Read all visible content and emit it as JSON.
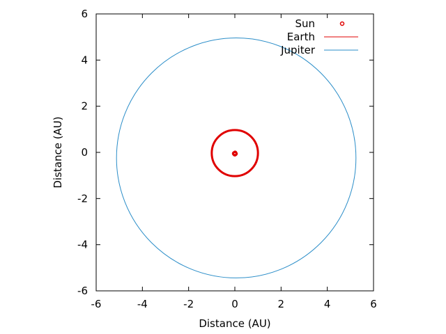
{
  "chart_data": {
    "type": "scatter",
    "title": "",
    "xlabel": "Distance (AU)",
    "ylabel": "Distance (AU)",
    "xlim": [
      -6,
      6
    ],
    "ylim": [
      -6,
      6
    ],
    "xticks": [
      "-6",
      "-4",
      "-2",
      "0",
      "2",
      "4",
      "6"
    ],
    "yticks": [
      "6",
      "4",
      "2",
      "0",
      "-2",
      "-4",
      "-6"
    ],
    "xtick_values": [
      -6,
      -4,
      -2,
      0,
      2,
      4,
      6
    ],
    "ytick_values": [
      6,
      4,
      2,
      0,
      -2,
      -4,
      -6
    ],
    "grid": false,
    "legend_position": "top-right",
    "series": [
      {
        "name": "Sun",
        "style": "points",
        "color": "#e00000",
        "points": [
          [
            0.0,
            -0.05
          ],
          [
            0.01,
            -0.04
          ],
          [
            -0.01,
            -0.06
          ],
          [
            0.02,
            -0.05
          ],
          [
            -0.02,
            -0.04
          ],
          [
            0.0,
            -0.08
          ],
          [
            0.01,
            -0.02
          ],
          [
            -0.01,
            -0.07
          ],
          [
            0.03,
            -0.06
          ],
          [
            -0.03,
            -0.05
          ]
        ]
      },
      {
        "name": "Earth",
        "style": "ellipse",
        "color": "#e00000",
        "center": [
          0.0,
          -0.03
        ],
        "rx": 1.0,
        "ry": 1.0
      },
      {
        "name": "Jupiter",
        "style": "ellipse",
        "color": "#2a8dc8",
        "center": [
          0.06,
          -0.24
        ],
        "rx": 5.18,
        "ry": 5.2
      }
    ]
  }
}
